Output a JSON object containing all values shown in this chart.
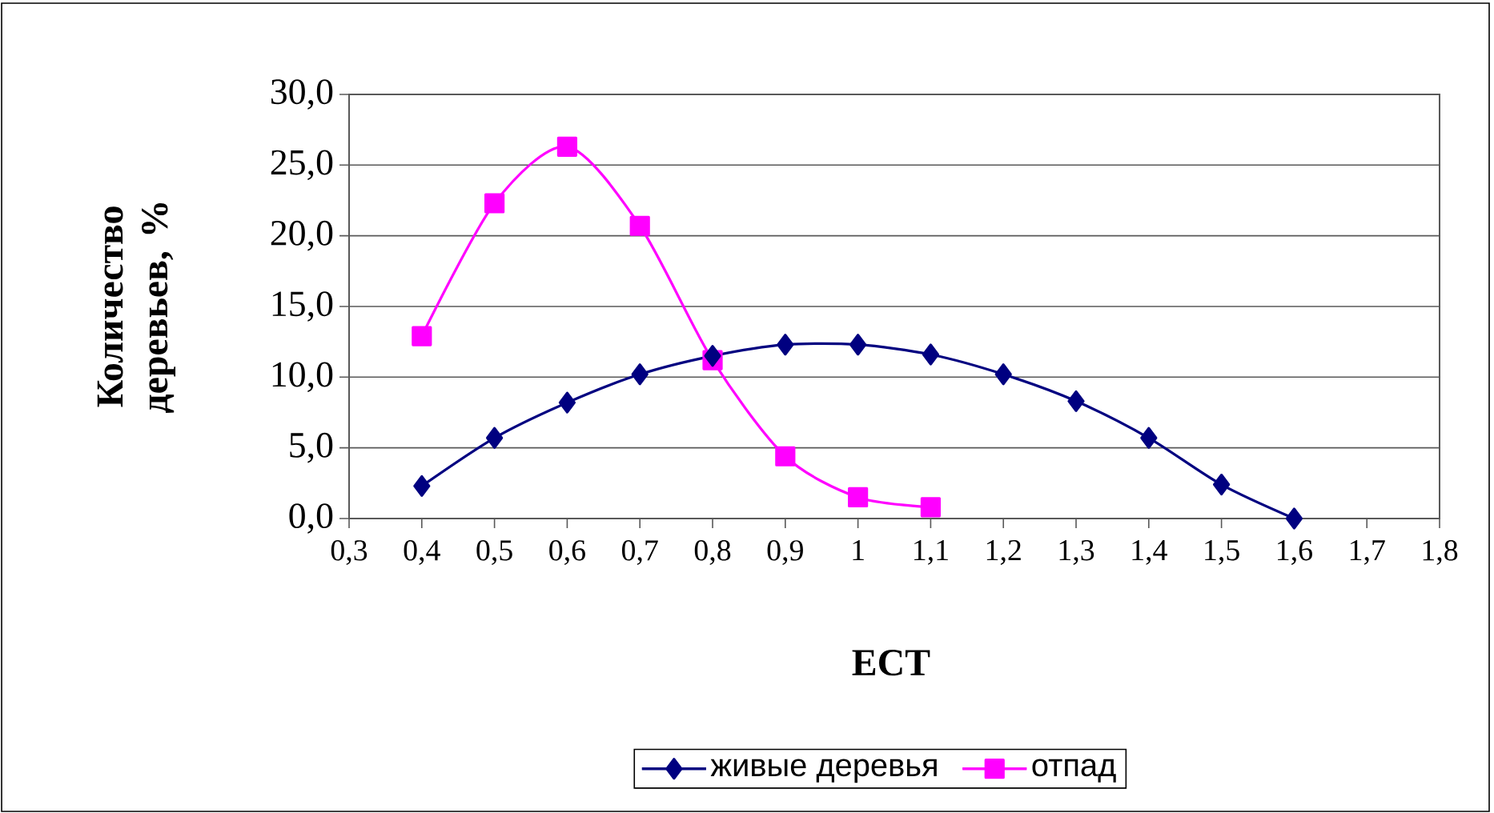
{
  "chart_data": {
    "type": "line",
    "xlabel": "ЕСТ",
    "ylabel": "Количество деревьев, %",
    "x": [
      0.4,
      0.5,
      0.6,
      0.7,
      0.8,
      0.9,
      1.0,
      1.1,
      1.2,
      1.3,
      1.4,
      1.5,
      1.6
    ],
    "series": [
      {
        "name": "живые деревья",
        "color": "#000080",
        "marker": "diamond",
        "values": [
          2.3,
          5.7,
          8.2,
          10.2,
          11.5,
          12.3,
          12.3,
          11.6,
          10.2,
          8.3,
          5.7,
          2.4,
          0.0
        ]
      },
      {
        "name": "отпад",
        "color": "#ff00ff",
        "marker": "square",
        "x": [
          0.4,
          0.5,
          0.6,
          0.7,
          0.8,
          0.9,
          1.0,
          1.1
        ],
        "values": [
          12.9,
          22.3,
          26.3,
          20.7,
          11.2,
          4.4,
          1.5,
          0.8
        ]
      }
    ],
    "xlim": [
      0.3,
      1.8
    ],
    "xticks": [
      {
        "value": 0.3,
        "label": "0,3"
      },
      {
        "value": 0.4,
        "label": "0,4"
      },
      {
        "value": 0.5,
        "label": "0,5"
      },
      {
        "value": 0.6,
        "label": "0,6"
      },
      {
        "value": 0.7,
        "label": "0,7"
      },
      {
        "value": 0.8,
        "label": "0,8"
      },
      {
        "value": 0.9,
        "label": "0,9"
      },
      1,
      {
        "value": 1.1,
        "label": "1,1"
      },
      {
        "value": 1.2,
        "label": "1,2"
      },
      {
        "value": 1.3,
        "label": "1,3"
      },
      {
        "value": 1.4,
        "label": "1,4"
      },
      {
        "value": 1.5,
        "label": "1,5"
      },
      {
        "value": 1.6,
        "label": "1,6"
      },
      {
        "value": 1.7,
        "label": "1,7"
      },
      {
        "value": 1.8,
        "label": "1,8"
      }
    ],
    "ylim": [
      0,
      30
    ],
    "yticks": [
      {
        "value": 0,
        "label": "0,0"
      },
      {
        "value": 5,
        "label": "5,0"
      },
      {
        "value": 10,
        "label": "10,0"
      },
      {
        "value": 15,
        "label": "15,0"
      },
      {
        "value": 20,
        "label": "20,0"
      },
      {
        "value": 25,
        "label": "25,0"
      },
      {
        "value": 30,
        "label": "30,0"
      }
    ],
    "grid": "y",
    "legend": "bottom",
    "line_style": "solid"
  }
}
